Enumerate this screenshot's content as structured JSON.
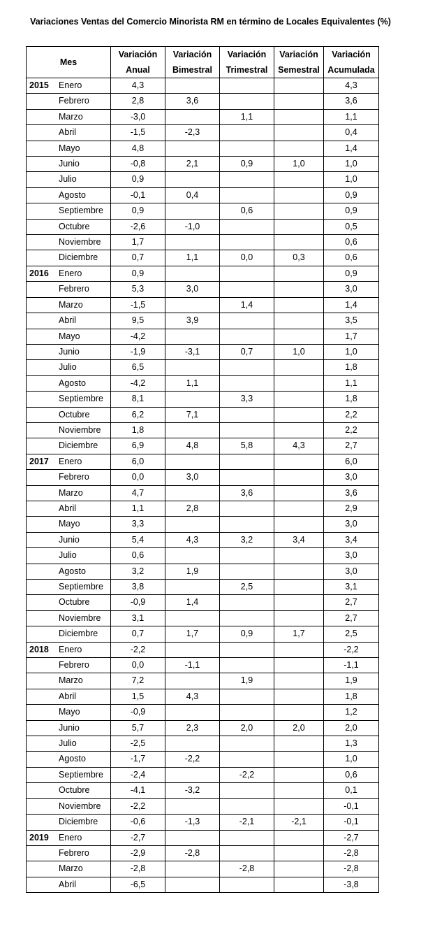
{
  "title": "Variaciones Ventas del Comercio Minorista RM en término de Locales Equivalentes (%)",
  "headers": {
    "mes": "Mes",
    "anual": [
      "Variación",
      "Anual"
    ],
    "bimestral": [
      "Variación",
      "Bimestral"
    ],
    "trimestral": [
      "Variación",
      "Trimestral"
    ],
    "semestral": [
      "Variación",
      "Semestral"
    ],
    "acumulada": [
      "Variación",
      "Acumulada"
    ]
  },
  "rows": [
    {
      "year": "2015",
      "month": "Enero",
      "anual": "4,3",
      "bimestral": "",
      "trimestral": "",
      "semestral": "",
      "acumulada": "4,3"
    },
    {
      "year": "",
      "month": "Febrero",
      "anual": "2,8",
      "bimestral": "3,6",
      "trimestral": "",
      "semestral": "",
      "acumulada": "3,6"
    },
    {
      "year": "",
      "month": "Marzo",
      "anual": "-3,0",
      "bimestral": "",
      "trimestral": "1,1",
      "semestral": "",
      "acumulada": "1,1"
    },
    {
      "year": "",
      "month": "Abril",
      "anual": "-1,5",
      "bimestral": "-2,3",
      "trimestral": "",
      "semestral": "",
      "acumulada": "0,4"
    },
    {
      "year": "",
      "month": "Mayo",
      "anual": "4,8",
      "bimestral": "",
      "trimestral": "",
      "semestral": "",
      "acumulada": "1,4"
    },
    {
      "year": "",
      "month": "Junio",
      "anual": "-0,8",
      "bimestral": "2,1",
      "trimestral": "0,9",
      "semestral": "1,0",
      "acumulada": "1,0"
    },
    {
      "year": "",
      "month": "Julio",
      "anual": "0,9",
      "bimestral": "",
      "trimestral": "",
      "semestral": "",
      "acumulada": "1,0"
    },
    {
      "year": "",
      "month": "Agosto",
      "anual": "-0,1",
      "bimestral": "0,4",
      "trimestral": "",
      "semestral": "",
      "acumulada": "0,9"
    },
    {
      "year": "",
      "month": "Septiembre",
      "anual": "0,9",
      "bimestral": "",
      "trimestral": "0,6",
      "semestral": "",
      "acumulada": "0,9"
    },
    {
      "year": "",
      "month": "Octubre",
      "anual": "-2,6",
      "bimestral": "-1,0",
      "trimestral": "",
      "semestral": "",
      "acumulada": "0,5"
    },
    {
      "year": "",
      "month": "Noviembre",
      "anual": "1,7",
      "bimestral": "",
      "trimestral": "",
      "semestral": "",
      "acumulada": "0,6"
    },
    {
      "year": "",
      "month": "Diciembre",
      "anual": "0,7",
      "bimestral": "1,1",
      "trimestral": "0,0",
      "semestral": "0,3",
      "acumulada": "0,6"
    },
    {
      "year": "2016",
      "month": "Enero",
      "anual": "0,9",
      "bimestral": "",
      "trimestral": "",
      "semestral": "",
      "acumulada": "0,9"
    },
    {
      "year": "",
      "month": "Febrero",
      "anual": "5,3",
      "bimestral": "3,0",
      "trimestral": "",
      "semestral": "",
      "acumulada": "3,0"
    },
    {
      "year": "",
      "month": "Marzo",
      "anual": "-1,5",
      "bimestral": "",
      "trimestral": "1,4",
      "semestral": "",
      "acumulada": "1,4"
    },
    {
      "year": "",
      "month": "Abril",
      "anual": "9,5",
      "bimestral": "3,9",
      "trimestral": "",
      "semestral": "",
      "acumulada": "3,5"
    },
    {
      "year": "",
      "month": "Mayo",
      "anual": "-4,2",
      "bimestral": "",
      "trimestral": "",
      "semestral": "",
      "acumulada": "1,7"
    },
    {
      "year": "",
      "month": "Junio",
      "anual": "-1,9",
      "bimestral": "-3,1",
      "trimestral": "0,7",
      "semestral": "1,0",
      "acumulada": "1,0"
    },
    {
      "year": "",
      "month": "Julio",
      "anual": "6,5",
      "bimestral": "",
      "trimestral": "",
      "semestral": "",
      "acumulada": "1,8"
    },
    {
      "year": "",
      "month": "Agosto",
      "anual": "-4,2",
      "bimestral": "1,1",
      "trimestral": "",
      "semestral": "",
      "acumulada": "1,1"
    },
    {
      "year": "",
      "month": "Septiembre",
      "anual": "8,1",
      "bimestral": "",
      "trimestral": "3,3",
      "semestral": "",
      "acumulada": "1,8"
    },
    {
      "year": "",
      "month": "Octubre",
      "anual": "6,2",
      "bimestral": "7,1",
      "trimestral": "",
      "semestral": "",
      "acumulada": "2,2"
    },
    {
      "year": "",
      "month": "Noviembre",
      "anual": "1,8",
      "bimestral": "",
      "trimestral": "",
      "semestral": "",
      "acumulada": "2,2"
    },
    {
      "year": "",
      "month": "Diciembre",
      "anual": "6,9",
      "bimestral": "4,8",
      "trimestral": "5,8",
      "semestral": "4,3",
      "acumulada": "2,7"
    },
    {
      "year": "2017",
      "month": "Enero",
      "anual": "6,0",
      "bimestral": "",
      "trimestral": "",
      "semestral": "",
      "acumulada": "6,0"
    },
    {
      "year": "",
      "month": "Febrero",
      "anual": "0,0",
      "bimestral": "3,0",
      "trimestral": "",
      "semestral": "",
      "acumulada": "3,0"
    },
    {
      "year": "",
      "month": "Marzo",
      "anual": "4,7",
      "bimestral": "",
      "trimestral": "3,6",
      "semestral": "",
      "acumulada": "3,6"
    },
    {
      "year": "",
      "month": "Abril",
      "anual": "1,1",
      "bimestral": "2,8",
      "trimestral": "",
      "semestral": "",
      "acumulada": "2,9"
    },
    {
      "year": "",
      "month": "Mayo",
      "anual": "3,3",
      "bimestral": "",
      "trimestral": "",
      "semestral": "",
      "acumulada": "3,0"
    },
    {
      "year": "",
      "month": "Junio",
      "anual": "5,4",
      "bimestral": "4,3",
      "trimestral": "3,2",
      "semestral": "3,4",
      "acumulada": "3,4"
    },
    {
      "year": "",
      "month": "Julio",
      "anual": "0,6",
      "bimestral": "",
      "trimestral": "",
      "semestral": "",
      "acumulada": "3,0"
    },
    {
      "year": "",
      "month": "Agosto",
      "anual": "3,2",
      "bimestral": "1,9",
      "trimestral": "",
      "semestral": "",
      "acumulada": "3,0"
    },
    {
      "year": "",
      "month": "Septiembre",
      "anual": "3,8",
      "bimestral": "",
      "trimestral": "2,5",
      "semestral": "",
      "acumulada": "3,1"
    },
    {
      "year": "",
      "month": "Octubre",
      "anual": "-0,9",
      "bimestral": "1,4",
      "trimestral": "",
      "semestral": "",
      "acumulada": "2,7"
    },
    {
      "year": "",
      "month": "Noviembre",
      "anual": "3,1",
      "bimestral": "",
      "trimestral": "",
      "semestral": "",
      "acumulada": "2,7"
    },
    {
      "year": "",
      "month": "Diciembre",
      "anual": "0,7",
      "bimestral": "1,7",
      "trimestral": "0,9",
      "semestral": "1,7",
      "acumulada": "2,5"
    },
    {
      "year": "2018",
      "month": "Enero",
      "anual": "-2,2",
      "bimestral": "",
      "trimestral": "",
      "semestral": "",
      "acumulada": "-2,2"
    },
    {
      "year": "",
      "month": "Febrero",
      "anual": "0,0",
      "bimestral": "-1,1",
      "trimestral": "",
      "semestral": "",
      "acumulada": "-1,1"
    },
    {
      "year": "",
      "month": "Marzo",
      "anual": "7,2",
      "bimestral": "",
      "trimestral": "1,9",
      "semestral": "",
      "acumulada": "1,9"
    },
    {
      "year": "",
      "month": "Abril",
      "anual": "1,5",
      "bimestral": "4,3",
      "trimestral": "",
      "semestral": "",
      "acumulada": "1,8"
    },
    {
      "year": "",
      "month": "Mayo",
      "anual": "-0,9",
      "bimestral": "",
      "trimestral": "",
      "semestral": "",
      "acumulada": "1,2"
    },
    {
      "year": "",
      "month": "Junio",
      "anual": "5,7",
      "bimestral": "2,3",
      "trimestral": "2,0",
      "semestral": "2,0",
      "acumulada": "2,0"
    },
    {
      "year": "",
      "month": "Julio",
      "anual": "-2,5",
      "bimestral": "",
      "trimestral": "",
      "semestral": "",
      "acumulada": "1,3"
    },
    {
      "year": "",
      "month": "Agosto",
      "anual": "-1,7",
      "bimestral": "-2,2",
      "trimestral": "",
      "semestral": "",
      "acumulada": "1,0"
    },
    {
      "year": "",
      "month": "Septiembre",
      "anual": "-2,4",
      "bimestral": "",
      "trimestral": "-2,2",
      "semestral": "",
      "acumulada": "0,6"
    },
    {
      "year": "",
      "month": "Octubre",
      "anual": "-4,1",
      "bimestral": "-3,2",
      "trimestral": "",
      "semestral": "",
      "acumulada": "0,1"
    },
    {
      "year": "",
      "month": "Noviembre",
      "anual": "-2,2",
      "bimestral": "",
      "trimestral": "",
      "semestral": "",
      "acumulada": "-0,1"
    },
    {
      "year": "",
      "month": "Diciembre",
      "anual": "-0,6",
      "bimestral": "-1,3",
      "trimestral": "-2,1",
      "semestral": "-2,1",
      "acumulada": "-0,1"
    },
    {
      "year": "2019",
      "month": "Enero",
      "anual": "-2,7",
      "bimestral": "",
      "trimestral": "",
      "semestral": "",
      "acumulada": "-2,7"
    },
    {
      "year": "",
      "month": "Febrero",
      "anual": "-2,9",
      "bimestral": "-2,8",
      "trimestral": "",
      "semestral": "",
      "acumulada": "-2,8"
    },
    {
      "year": "",
      "month": "Marzo",
      "anual": "-2,8",
      "bimestral": "",
      "trimestral": "-2,8",
      "semestral": "",
      "acumulada": "-2,8"
    },
    {
      "year": "",
      "month": "Abril",
      "anual": "-6,5",
      "bimestral": "",
      "trimestral": "",
      "semestral": "",
      "acumulada": "-3,8"
    }
  ]
}
